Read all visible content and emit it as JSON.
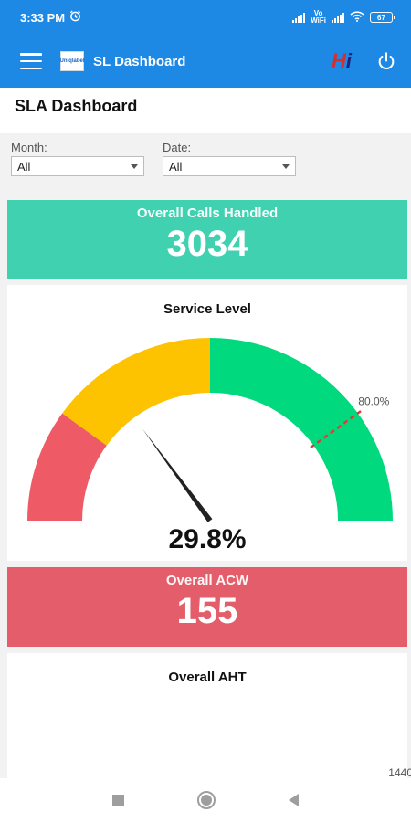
{
  "status_bar": {
    "time": "3:33 PM",
    "volte_top": "Vo",
    "volte_bottom": "WiFi",
    "battery": "67"
  },
  "app_bar": {
    "logo_text": "Uniqlabel",
    "title": "SL Dashboard",
    "brand_mark_h": "H",
    "brand_mark_i": "i"
  },
  "page": {
    "title": "SLA Dashboard"
  },
  "filters": {
    "month_label": "Month:",
    "month_value": "All",
    "date_label": "Date:",
    "date_value": "All"
  },
  "calls": {
    "label": "Overall Calls Handled",
    "value": "3034",
    "color": "#3fd1b0"
  },
  "service_level": {
    "title": "Service Level",
    "value_text": "29.8%",
    "target_label": "80.0%",
    "gauge": {
      "min": 0,
      "max": 100,
      "value": 29.8,
      "target": 80,
      "bands": [
        {
          "from": 0,
          "to": 20,
          "color": "#ee5b66"
        },
        {
          "from": 20,
          "to": 50,
          "color": "#fdc300"
        },
        {
          "from": 50,
          "to": 100,
          "color": "#00d97e"
        }
      ]
    }
  },
  "acw": {
    "label": "Overall ACW",
    "value": "155",
    "color": "#e35d6a"
  },
  "aht": {
    "title": "Overall AHT",
    "tick_label": "1440"
  },
  "icons": {
    "menu": "menu-icon",
    "power": "power-icon",
    "alarm": "alarm-icon",
    "wifi": "wifi-icon",
    "battery": "battery-icon"
  }
}
